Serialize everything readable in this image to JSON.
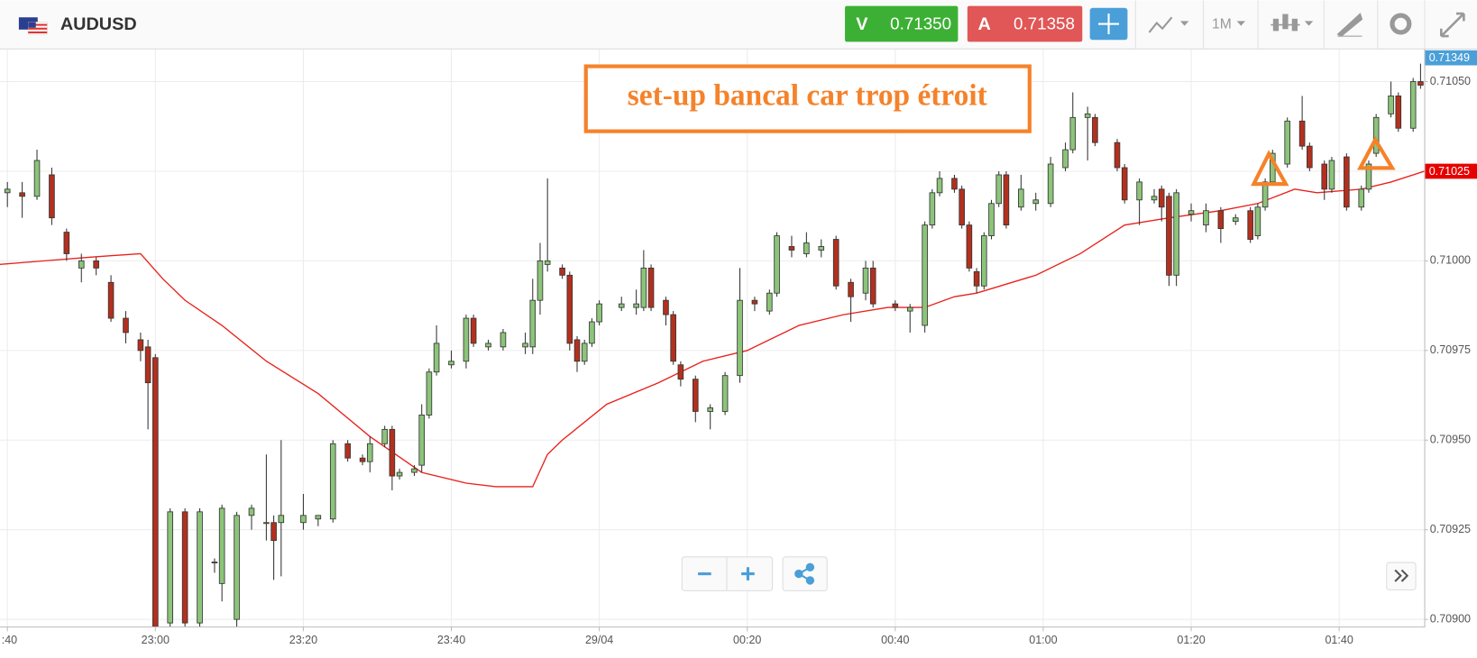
{
  "toolbar": {
    "symbol": "AUDUSD",
    "sell_label": "V",
    "sell_price": "0.71350",
    "buy_label": "A",
    "buy_price": "0.71358",
    "timeframe": "1M"
  },
  "chart_data": {
    "type": "candlestick",
    "annotation": "set-up bancal car trop étroit",
    "up_color": "#8cc47a",
    "down_color": "#b3301e",
    "grid": true,
    "xlim": [
      -1,
      191.5
    ],
    "ylim": [
      0.70898,
      0.71059
    ],
    "xticks": [
      {
        "value": 0,
        "label": ":40"
      },
      {
        "value": 20,
        "label": "23:00"
      },
      {
        "value": 40,
        "label": "23:20"
      },
      {
        "value": 60,
        "label": "23:40"
      },
      {
        "value": 80,
        "label": "29/04"
      },
      {
        "value": 100,
        "label": "00:20"
      },
      {
        "value": 120,
        "label": "00:40"
      },
      {
        "value": 140,
        "label": "01:00"
      },
      {
        "value": 160,
        "label": "01:20"
      },
      {
        "value": 180,
        "label": "01:40"
      }
    ],
    "yticks": [
      {
        "value": 0.709,
        "label": "0.70900"
      },
      {
        "value": 0.70925,
        "label": "0.70925"
      },
      {
        "value": 0.7095,
        "label": "0.70950"
      },
      {
        "value": 0.70975,
        "label": "0.70975"
      },
      {
        "value": 0.71,
        "label": "0.71000"
      },
      {
        "value": 0.71025,
        "label": "0.71025"
      },
      {
        "value": 0.7105,
        "label": "0.71050"
      }
    ],
    "price_tags": [
      {
        "value": 0.71349,
        "color": "#4a9fd8"
      },
      {
        "value": 0.71025,
        "color": "#e60000"
      }
    ],
    "x": [
      0,
      2,
      4,
      6,
      8,
      10,
      12,
      14,
      16,
      18,
      19,
      20,
      22,
      24,
      26,
      28,
      29,
      31,
      33,
      35,
      36,
      37,
      40,
      42,
      44,
      46,
      48,
      49,
      51,
      52,
      53,
      55,
      56,
      57,
      58,
      60,
      62,
      63,
      65,
      67,
      70,
      71,
      72,
      73,
      75,
      76,
      77,
      78,
      79,
      80,
      83,
      85,
      86,
      87,
      89,
      90,
      91,
      93,
      95,
      97,
      99,
      101,
      103,
      104,
      106,
      108,
      110,
      112,
      114,
      116,
      117,
      120,
      122,
      124,
      125,
      126,
      128,
      129,
      130,
      131,
      132,
      133,
      134,
      135,
      137,
      139,
      141,
      143,
      144,
      146,
      147,
      150,
      151,
      153,
      155,
      156,
      157,
      158,
      160,
      162,
      164,
      166,
      168,
      169,
      170,
      171,
      173,
      175,
      176,
      178,
      179,
      181,
      183,
      184,
      185,
      187,
      188,
      190,
      191
    ],
    "open": [
      0.71019,
      0.71019,
      0.71018,
      0.71024,
      0.71008,
      0.70998,
      0.71,
      0.70994,
      0.70984,
      0.70978,
      0.70976,
      0.70973,
      0.70899,
      0.7093,
      0.70899,
      0.70916,
      0.7091,
      0.709,
      0.70929,
      0.70927,
      0.70927,
      0.70927,
      0.70927,
      0.70928,
      0.70928,
      0.70949,
      0.70945,
      0.70944,
      0.70949,
      0.70953,
      0.7094,
      0.70941,
      0.70943,
      0.70957,
      0.70969,
      0.70971,
      0.70972,
      0.70984,
      0.70976,
      0.70976,
      0.70976,
      0.70976,
      0.70989,
      0.70999,
      0.70998,
      0.70996,
      0.70978,
      0.70972,
      0.70977,
      0.70983,
      0.70987,
      0.70987,
      0.70987,
      0.70998,
      0.70989,
      0.70985,
      0.70971,
      0.70967,
      0.70958,
      0.70958,
      0.70968,
      0.70989,
      0.70986,
      0.70991,
      0.71004,
      0.71002,
      0.71003,
      0.71006,
      0.70994,
      0.70991,
      0.70998,
      0.70988,
      0.70986,
      0.70982,
      0.7101,
      0.71019,
      0.71023,
      0.7102,
      0.7101,
      0.70997,
      0.70993,
      0.71007,
      0.71016,
      0.71024,
      0.71015,
      0.71016,
      0.71016,
      0.71026,
      0.71031,
      0.7104,
      0.7104,
      0.71033,
      0.71026,
      0.71017,
      0.71017,
      0.7102,
      0.71018,
      0.70996,
      0.71013,
      0.7101,
      0.71014,
      0.71011,
      0.71014,
      0.71007,
      0.71015,
      0.71022,
      0.71027,
      0.71039,
      0.71032,
      0.71027,
      0.7102,
      0.71029,
      0.71015,
      0.7102,
      0.7103,
      0.71041,
      0.71046,
      0.71037,
      0.7105
    ],
    "high": [
      0.71022,
      0.71022,
      0.71031,
      0.71026,
      0.71009,
      0.71002,
      0.71001,
      0.70996,
      0.70986,
      0.7098,
      0.70978,
      0.70974,
      0.70931,
      0.70931,
      0.70931,
      0.70917,
      0.70932,
      0.7093,
      0.70932,
      0.70946,
      0.70929,
      0.7095,
      0.70935,
      0.70929,
      0.7095,
      0.7095,
      0.70946,
      0.70951,
      0.70954,
      0.70954,
      0.70942,
      0.70943,
      0.7096,
      0.7097,
      0.70982,
      0.70975,
      0.70985,
      0.70985,
      0.70978,
      0.70981,
      0.7098,
      0.70995,
      0.71005,
      0.71023,
      0.70999,
      0.70997,
      0.70979,
      0.70978,
      0.70984,
      0.70989,
      0.7099,
      0.70992,
      0.71003,
      0.70999,
      0.7099,
      0.70986,
      0.70972,
      0.70968,
      0.7096,
      0.70969,
      0.70998,
      0.7099,
      0.70992,
      0.71008,
      0.71007,
      0.71008,
      0.71006,
      0.71007,
      0.70995,
      0.71,
      0.71,
      0.70989,
      0.70988,
      0.71011,
      0.7102,
      0.71025,
      0.71024,
      0.71021,
      0.71011,
      0.70998,
      0.71008,
      0.71017,
      0.71025,
      0.71025,
      0.71024,
      0.71019,
      0.71029,
      0.71033,
      0.71047,
      0.71043,
      0.71041,
      0.71034,
      0.71027,
      0.71023,
      0.7102,
      0.71021,
      0.71019,
      0.7102,
      0.71016,
      0.71016,
      0.71015,
      0.71013,
      0.71015,
      0.71016,
      0.71023,
      0.71031,
      0.7104,
      0.71046,
      0.71033,
      0.71028,
      0.71029,
      0.7103,
      0.71021,
      0.71028,
      0.71041,
      0.7105,
      0.71047,
      0.71051,
      0.71055
    ],
    "low": [
      0.71015,
      0.71012,
      0.71017,
      0.7101,
      0.71,
      0.70994,
      0.70996,
      0.70983,
      0.70977,
      0.70972,
      0.70953,
      0.7089,
      0.70896,
      0.70895,
      0.70896,
      0.70913,
      0.70905,
      0.70898,
      0.70925,
      0.70922,
      0.70911,
      0.70912,
      0.70925,
      0.70926,
      0.70927,
      0.70944,
      0.70943,
      0.70941,
      0.70948,
      0.70936,
      0.70939,
      0.7094,
      0.70941,
      0.70956,
      0.70968,
      0.7097,
      0.7097,
      0.70976,
      0.70975,
      0.70975,
      0.70974,
      0.70974,
      0.70985,
      0.70997,
      0.70995,
      0.70975,
      0.70969,
      0.70971,
      0.70976,
      0.70982,
      0.70986,
      0.70985,
      0.70986,
      0.70986,
      0.70982,
      0.70971,
      0.70965,
      0.70955,
      0.70953,
      0.70957,
      0.70966,
      0.70986,
      0.70985,
      0.7099,
      0.71001,
      0.71001,
      0.71001,
      0.70992,
      0.70983,
      0.70989,
      0.70987,
      0.70986,
      0.7098,
      0.7098,
      0.71009,
      0.71018,
      0.71019,
      0.71009,
      0.70997,
      0.70991,
      0.70992,
      0.71006,
      0.71015,
      0.71009,
      0.71014,
      0.71014,
      0.71015,
      0.71025,
      0.7103,
      0.71028,
      0.71032,
      0.71025,
      0.71016,
      0.7101,
      0.71016,
      0.71011,
      0.70993,
      0.70993,
      0.71011,
      0.71008,
      0.71005,
      0.7101,
      0.71005,
      0.71006,
      0.71014,
      0.71021,
      0.71026,
      0.71031,
      0.71025,
      0.71017,
      0.71019,
      0.71014,
      0.71014,
      0.71019,
      0.71029,
      0.7104,
      0.71036,
      0.71036,
      0.71048
    ],
    "close": [
      0.7102,
      0.71018,
      0.71028,
      0.71012,
      0.71002,
      0.71,
      0.70998,
      0.70984,
      0.7098,
      0.70975,
      0.70966,
      0.70898,
      0.7093,
      0.70899,
      0.7093,
      0.70916,
      0.70931,
      0.70929,
      0.70931,
      0.70927,
      0.70922,
      0.70929,
      0.70929,
      0.70929,
      0.70949,
      0.70945,
      0.70944,
      0.70949,
      0.70953,
      0.7094,
      0.70941,
      0.70942,
      0.70957,
      0.70969,
      0.70977,
      0.70972,
      0.70984,
      0.70977,
      0.70977,
      0.7098,
      0.70977,
      0.70989,
      0.71,
      0.71,
      0.70996,
      0.70977,
      0.70972,
      0.70977,
      0.70983,
      0.70988,
      0.70988,
      0.70988,
      0.70998,
      0.70987,
      0.70985,
      0.70972,
      0.70967,
      0.70958,
      0.70959,
      0.70968,
      0.70989,
      0.70988,
      0.70991,
      0.71007,
      0.71003,
      0.71005,
      0.71004,
      0.70993,
      0.7099,
      0.70998,
      0.70988,
      0.70987,
      0.70987,
      0.7101,
      0.71019,
      0.71023,
      0.7102,
      0.7101,
      0.70998,
      0.70993,
      0.71007,
      0.71016,
      0.71024,
      0.7101,
      0.7102,
      0.71017,
      0.71027,
      0.71031,
      0.7104,
      0.71041,
      0.71033,
      0.71026,
      0.71017,
      0.71022,
      0.71018,
      0.71015,
      0.70996,
      0.71019,
      0.71014,
      0.71014,
      0.71009,
      0.71012,
      0.71006,
      0.71015,
      0.71022,
      0.7103,
      0.71039,
      0.71032,
      0.71026,
      0.7102,
      0.71028,
      0.71015,
      0.7102,
      0.71027,
      0.7104,
      0.71046,
      0.71037,
      0.7105,
      0.71049
    ],
    "ma": {
      "color": "#e8221c",
      "x": [
        -1,
        5,
        11,
        18,
        21,
        24,
        29,
        35,
        42,
        49,
        56,
        62,
        66,
        71,
        73,
        75,
        81,
        88,
        94,
        100,
        107,
        113,
        119,
        124,
        128,
        131,
        139,
        145,
        151,
        157,
        164,
        169,
        174,
        177,
        183,
        187,
        191.5
      ],
      "values": [
        0.70999,
        0.71,
        0.71001,
        0.71002,
        0.70995,
        0.70989,
        0.70982,
        0.70972,
        0.70963,
        0.70951,
        0.70941,
        0.70938,
        0.70937,
        0.70937,
        0.70946,
        0.7095,
        0.7096,
        0.70966,
        0.70972,
        0.70975,
        0.70982,
        0.70985,
        0.70987,
        0.70987,
        0.7099,
        0.70991,
        0.70996,
        0.71002,
        0.7101,
        0.71012,
        0.71014,
        0.71016,
        0.7102,
        0.71019,
        0.7102,
        0.71022,
        0.71025
      ]
    }
  }
}
